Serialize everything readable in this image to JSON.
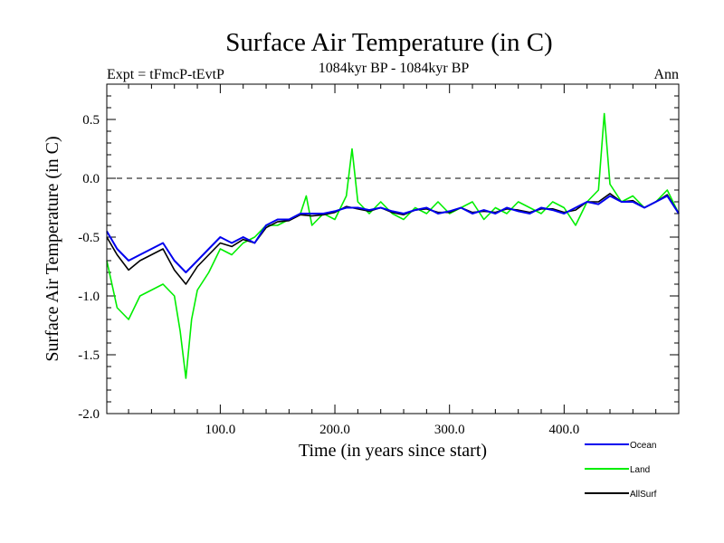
{
  "chart_data": {
    "type": "line",
    "title": "Surface Air Temperature (in C)",
    "subtitle": "1084kyr BP - 1084kyr BP",
    "left_label": "Expt = tFmcP-tEvtP",
    "right_label": "Ann",
    "xlabel": "Time (in years since start)",
    "ylabel": "Surface Air Temperature (in C)",
    "xlim": [
      1,
      500
    ],
    "ylim": [
      -2.0,
      0.8
    ],
    "xticks": [
      100,
      200,
      300,
      400
    ],
    "xtick_labels": [
      "100.0",
      "200.0",
      "300.0",
      "400.0"
    ],
    "yticks": [
      0.5,
      0.0,
      -0.5,
      -1.0,
      -1.5,
      -2.0
    ],
    "ytick_labels": [
      "0.5",
      "0.0",
      "-0.5",
      "-1.0",
      "-1.5",
      "-2.0"
    ],
    "reference_line": 0.0,
    "legend_position": "bottom-right",
    "series": [
      {
        "name": "Land",
        "color": "#00ee00",
        "x": [
          1,
          10,
          20,
          30,
          40,
          50,
          60,
          65,
          70,
          75,
          80,
          90,
          100,
          110,
          120,
          130,
          140,
          150,
          160,
          170,
          175,
          180,
          190,
          200,
          210,
          215,
          220,
          230,
          240,
          250,
          260,
          270,
          280,
          290,
          300,
          310,
          320,
          330,
          340,
          350,
          360,
          370,
          380,
          390,
          400,
          410,
          420,
          430,
          435,
          440,
          450,
          460,
          470,
          480,
          490,
          500
        ],
        "values": [
          -0.7,
          -1.1,
          -1.2,
          -1.0,
          -0.95,
          -0.9,
          -1.0,
          -1.3,
          -1.7,
          -1.2,
          -0.95,
          -0.8,
          -0.6,
          -0.65,
          -0.55,
          -0.5,
          -0.4,
          -0.4,
          -0.35,
          -0.3,
          -0.15,
          -0.4,
          -0.3,
          -0.35,
          -0.15,
          0.25,
          -0.2,
          -0.3,
          -0.2,
          -0.3,
          -0.35,
          -0.25,
          -0.3,
          -0.2,
          -0.3,
          -0.25,
          -0.2,
          -0.35,
          -0.25,
          -0.3,
          -0.2,
          -0.25,
          -0.3,
          -0.2,
          -0.25,
          -0.4,
          -0.2,
          -0.1,
          0.55,
          -0.05,
          -0.2,
          -0.15,
          -0.25,
          -0.2,
          -0.1,
          -0.3
        ]
      },
      {
        "name": "Ocean",
        "color": "#0000ee",
        "x": [
          1,
          10,
          20,
          30,
          40,
          50,
          60,
          70,
          80,
          90,
          100,
          110,
          120,
          130,
          140,
          150,
          160,
          170,
          180,
          190,
          200,
          210,
          220,
          230,
          240,
          250,
          260,
          270,
          280,
          290,
          300,
          310,
          320,
          330,
          340,
          350,
          360,
          370,
          380,
          390,
          400,
          410,
          420,
          430,
          440,
          450,
          460,
          470,
          480,
          490,
          500
        ],
        "values": [
          -0.45,
          -0.6,
          -0.7,
          -0.65,
          -0.6,
          -0.55,
          -0.7,
          -0.8,
          -0.7,
          -0.6,
          -0.5,
          -0.55,
          -0.5,
          -0.55,
          -0.4,
          -0.35,
          -0.35,
          -0.3,
          -0.3,
          -0.3,
          -0.28,
          -0.25,
          -0.25,
          -0.27,
          -0.25,
          -0.28,
          -0.3,
          -0.27,
          -0.25,
          -0.3,
          -0.28,
          -0.25,
          -0.3,
          -0.27,
          -0.3,
          -0.25,
          -0.28,
          -0.3,
          -0.25,
          -0.27,
          -0.3,
          -0.25,
          -0.2,
          -0.22,
          -0.15,
          -0.2,
          -0.2,
          -0.25,
          -0.2,
          -0.15,
          -0.3
        ]
      },
      {
        "name": "AllSurf",
        "color": "#000000",
        "x": [
          1,
          10,
          20,
          30,
          40,
          50,
          60,
          70,
          80,
          90,
          100,
          110,
          120,
          130,
          140,
          150,
          160,
          170,
          180,
          190,
          200,
          210,
          220,
          230,
          240,
          250,
          260,
          270,
          280,
          290,
          300,
          310,
          320,
          330,
          340,
          350,
          360,
          370,
          380,
          390,
          400,
          410,
          420,
          430,
          440,
          450,
          460,
          470,
          480,
          490,
          500
        ],
        "values": [
          -0.5,
          -0.65,
          -0.78,
          -0.7,
          -0.65,
          -0.6,
          -0.78,
          -0.9,
          -0.75,
          -0.65,
          -0.55,
          -0.58,
          -0.52,
          -0.55,
          -0.42,
          -0.37,
          -0.36,
          -0.31,
          -0.32,
          -0.31,
          -0.29,
          -0.24,
          -0.26,
          -0.28,
          -0.25,
          -0.29,
          -0.31,
          -0.27,
          -0.26,
          -0.29,
          -0.29,
          -0.25,
          -0.29,
          -0.28,
          -0.29,
          -0.26,
          -0.27,
          -0.29,
          -0.26,
          -0.26,
          -0.29,
          -0.27,
          -0.2,
          -0.2,
          -0.13,
          -0.2,
          -0.19,
          -0.25,
          -0.2,
          -0.14,
          -0.3
        ]
      }
    ]
  }
}
